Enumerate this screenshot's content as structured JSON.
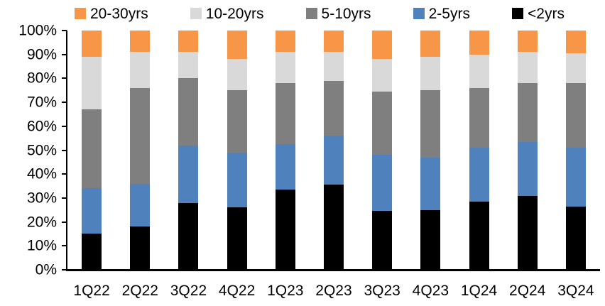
{
  "chart_data": {
    "type": "bar",
    "stacked": true,
    "title": "",
    "xlabel": "",
    "ylabel": "",
    "ylim": [
      0,
      100
    ],
    "grid": false,
    "legend_position": "top",
    "legend_order": [
      "20-30yrs",
      "10-20yrs",
      "5-10yrs",
      "2-5yrs",
      "<2yrs"
    ],
    "y_ticks": [
      {
        "label": "100%",
        "value": 100
      },
      {
        "label": "90%",
        "value": 90
      },
      {
        "label": "80%",
        "value": 80
      },
      {
        "label": "70%",
        "value": 70
      },
      {
        "label": "60%",
        "value": 60
      },
      {
        "label": "50%",
        "value": 50
      },
      {
        "label": "40%",
        "value": 40
      },
      {
        "label": "30%",
        "value": 30
      },
      {
        "label": "20%",
        "value": 20
      },
      {
        "label": "10%",
        "value": 10
      },
      {
        "label": "0%",
        "value": 0
      }
    ],
    "categories": [
      "1Q22",
      "2Q22",
      "3Q22",
      "4Q22",
      "1Q23",
      "2Q23",
      "3Q23",
      "4Q23",
      "1Q24",
      "2Q24",
      "3Q24"
    ],
    "series": [
      {
        "name": "<2yrs",
        "color": "#000000",
        "values": [
          15,
          18,
          28,
          26,
          33.5,
          35.5,
          24.5,
          25,
          28.5,
          31,
          26.5
        ]
      },
      {
        "name": "2-5yrs",
        "color": "#4F81BD",
        "values": [
          19,
          18,
          24,
          23,
          19,
          20.5,
          23.5,
          22,
          22.5,
          22.5,
          24.5
        ]
      },
      {
        "name": "5-10yrs",
        "color": "#7F7F7F",
        "values": [
          33,
          40,
          28,
          26,
          25.5,
          23,
          26.5,
          28,
          25,
          24.5,
          27
        ]
      },
      {
        "name": "10-20yrs",
        "color": "#D9D9D9",
        "values": [
          22,
          15,
          11,
          13,
          13,
          12,
          13.5,
          14,
          14,
          13,
          12.5
        ]
      },
      {
        "name": "20-30yrs",
        "color": "#F79646",
        "values": [
          11,
          9,
          9,
          12,
          9,
          9,
          12,
          11,
          10,
          9,
          9.5
        ]
      }
    ],
    "axis_color": "#000000",
    "text_color": "#000000",
    "background_color": "#FFFFFF"
  }
}
